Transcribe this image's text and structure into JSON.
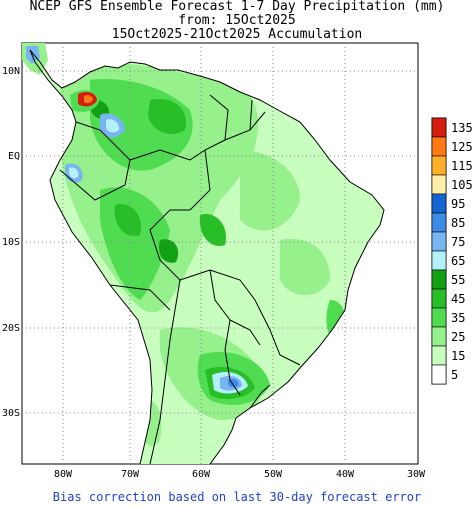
{
  "title": {
    "line1": "NCEP GFS Ensemble Forecast 1-7 Day Precipitation (mm)",
    "line2": "from: 15Oct2025",
    "line3": "15Oct2025-21Oct2025 Accumulation"
  },
  "footer": "Bias correction based on last 30-day forecast error",
  "axes": {
    "lat_labels": [
      "10N",
      "EQ",
      "10S",
      "20S",
      "30S"
    ],
    "lon_labels": [
      "80W",
      "70W",
      "60W",
      "50W",
      "40W",
      "30W"
    ]
  },
  "legend": {
    "levels": [
      "135",
      "125",
      "115",
      "105",
      "95",
      "85",
      "75",
      "65",
      "55",
      "45",
      "35",
      "25",
      "15",
      "5"
    ],
    "colors": [
      "#d41f10",
      "#ff7a14",
      "#ffb028",
      "#ffeeaa",
      "#1464d2",
      "#3c8ce6",
      "#78b4f0",
      "#b4f0fa",
      "#14a014",
      "#28be28",
      "#50dc50",
      "#96f08c",
      "#c8ffbe",
      "#ffffff"
    ]
  }
}
